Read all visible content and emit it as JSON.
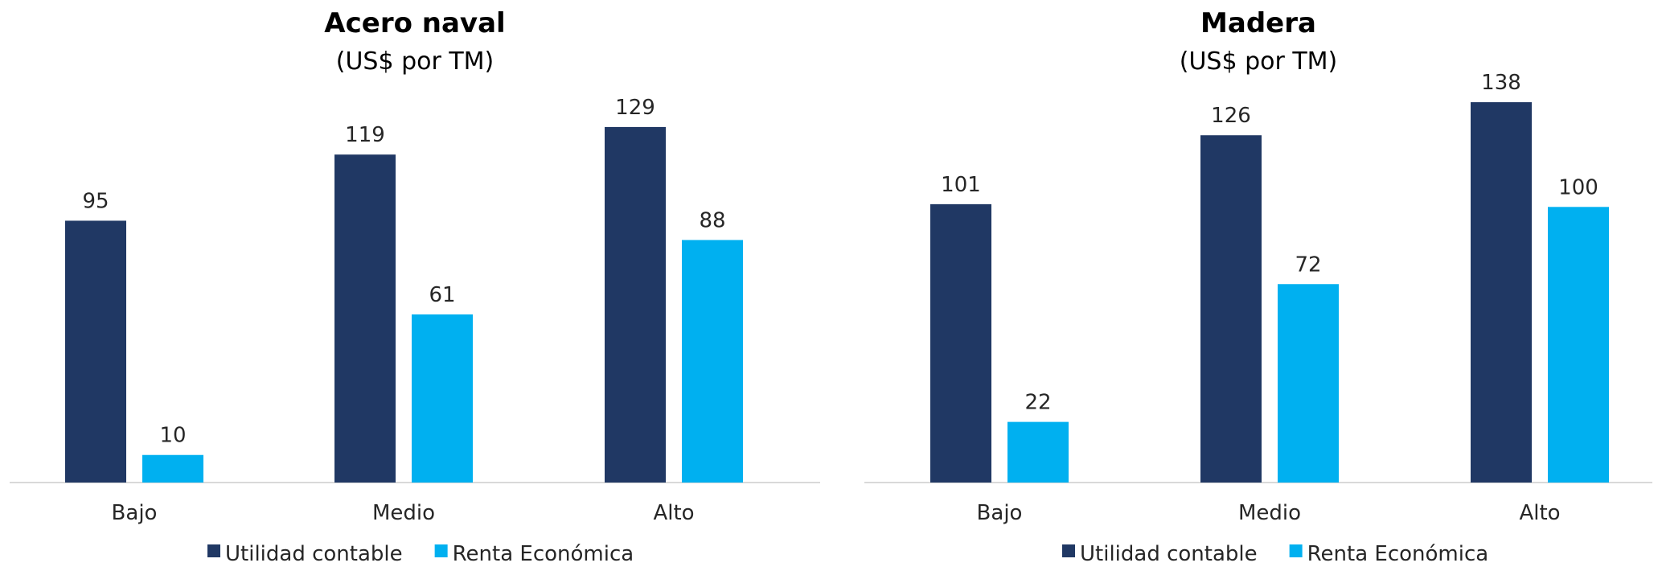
{
  "chart_data": [
    {
      "type": "bar",
      "title": "Acero naval",
      "subtitle": "(US$ por TM)",
      "categories": [
        "Bajo",
        "Medio",
        "Alto"
      ],
      "series": [
        {
          "name": "Utilidad contable",
          "values": [
            95,
            119,
            129
          ]
        },
        {
          "name": "Renta Económica",
          "values": [
            10,
            61,
            88
          ]
        }
      ],
      "ylim": [
        0,
        140
      ],
      "grid": false,
      "legend": "bottom"
    },
    {
      "type": "bar",
      "title": "Madera",
      "subtitle": "(US$ por TM)",
      "categories": [
        "Bajo",
        "Medio",
        "Alto"
      ],
      "series": [
        {
          "name": "Utilidad contable",
          "values": [
            101,
            126,
            138
          ]
        },
        {
          "name": "Renta Económica",
          "values": [
            22,
            72,
            100
          ]
        }
      ],
      "ylim": [
        0,
        150
      ],
      "grid": false,
      "legend": "bottom"
    }
  ],
  "colors": {
    "series": [
      "#203864",
      "#00B0F0"
    ],
    "axis": "#D9D9D9"
  }
}
